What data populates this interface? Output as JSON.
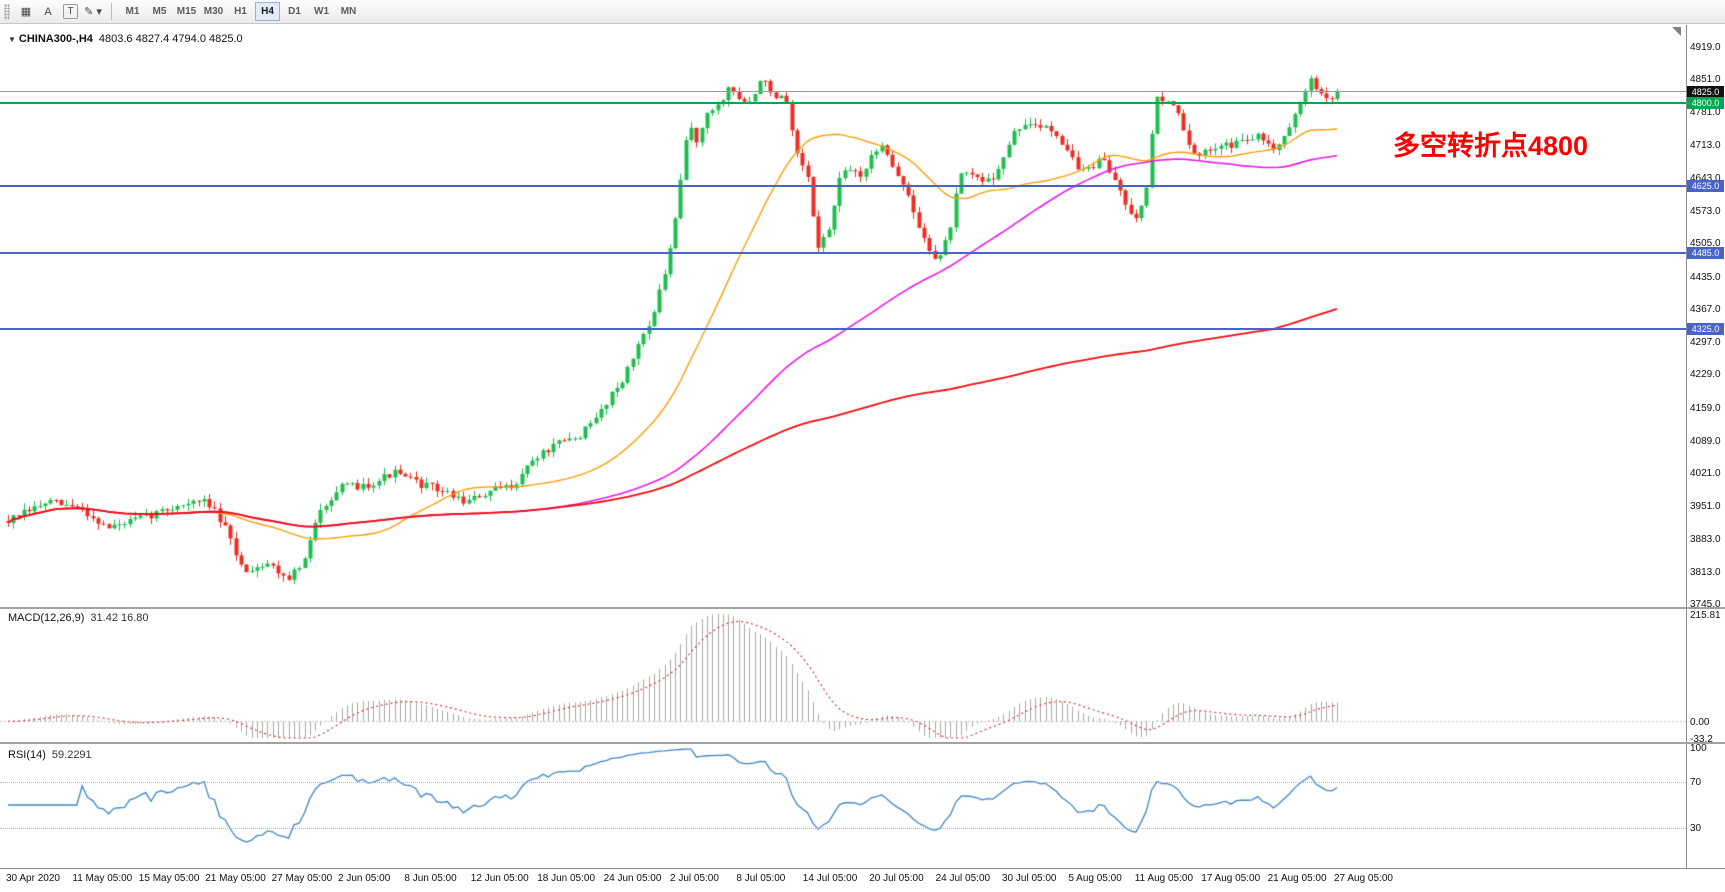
{
  "toolbar": {
    "tools": [
      {
        "name": "chart-grid-icon",
        "glyph": "▦"
      },
      {
        "name": "cursor-icon",
        "glyph": "A"
      },
      {
        "name": "text-tool-icon",
        "glyph": "T",
        "boxed": true
      },
      {
        "name": "drawing-tools-icon",
        "glyph": "✎ ▾"
      }
    ],
    "timeframes": [
      "M1",
      "M5",
      "M15",
      "M30",
      "H1",
      "H4",
      "D1",
      "W1",
      "MN"
    ],
    "active_timeframe": "H4"
  },
  "chart": {
    "symbol_label": "CHINA300-,H4",
    "ohlc": "4803.6 4827.4 4794.0 4825.0",
    "annotation": {
      "text": "多空转折点4800",
      "color": "#ff0000"
    },
    "price_axis": {
      "labels": [
        "4919.0",
        "4851.0",
        "4781.0",
        "4713.0",
        "4643.0",
        "4573.0",
        "4505.0",
        "4435.0",
        "4367.0",
        "4297.0",
        "4229.0",
        "4159.0",
        "4089.0",
        "4021.0",
        "3951.0",
        "3883.0",
        "3813.0",
        "3745.0"
      ]
    },
    "hlines": [
      {
        "price": 4825.0,
        "label": "4825.0",
        "color": "#9a9a9a",
        "width": 1,
        "badge_bg": "#111111",
        "badge_fg": "#ffffff"
      },
      {
        "price": 4800.0,
        "label": "4800.0",
        "color": "#00a651",
        "width": 2,
        "badge_bg": "#00a651",
        "badge_fg": "#ffffff"
      },
      {
        "price": 4625.0,
        "label": "4625.0",
        "color": "#4a63c8",
        "width": 2,
        "badge_bg": "#4a63c8",
        "badge_fg": "#ffffff"
      },
      {
        "price": 4485.0,
        "label": "4485.0",
        "color": "#4a63c8",
        "width": 2,
        "badge_bg": "#4a63c8",
        "badge_fg": "#ffffff"
      },
      {
        "price": 4325.0,
        "label": "4325.0",
        "color": "#4a63c8",
        "width": 2,
        "badge_bg": "#4a63c8",
        "badge_fg": "#ffffff"
      }
    ],
    "candles": {
      "seed": 7,
      "noise": 16,
      "wick": 14,
      "up_color": "#1dbf4f",
      "down_color": "#ed2e24"
    },
    "ma_lines": [
      {
        "period": 30,
        "color": "#ff9d0a",
        "width": 1.4
      },
      {
        "period": 90,
        "color": "#ec18e8",
        "width": 1.6
      },
      {
        "period": 240,
        "color": "#f20c0c",
        "width": 1.8
      }
    ]
  },
  "macd": {
    "label": "MACD(12,26,9)",
    "values": "31.42 16.80",
    "fast": 12,
    "slow": 26,
    "signal": 9,
    "axis": {
      "top": "215.81",
      "zero": "0.00",
      "bottom": "-33.2"
    },
    "hist_color": "#a8a8a8",
    "signal_color": "#d23b3b"
  },
  "rsi": {
    "label": "RSI(14)",
    "value": "59.2291",
    "period": 14,
    "axis_top": "100",
    "levels": [
      {
        "value": 70,
        "label": "70"
      },
      {
        "value": 30,
        "label": "30"
      }
    ],
    "line_color": "#3f86c6"
  },
  "time_axis": {
    "labels": [
      "30 Apr 2020",
      "11 May 05:00",
      "15 May 05:00",
      "21 May 05:00",
      "27 May 05:00",
      "2 Jun 05:00",
      "8 Jun 05:00",
      "12 Jun 05:00",
      "18 Jun 05:00",
      "24 Jun 05:00",
      "2 Jul 05:00",
      "8 Jul 05:00",
      "14 Jul 05:00",
      "20 Jul 05:00",
      "24 Jul 05:00",
      "30 Jul 05:00",
      "5 Aug 05:00",
      "11 Aug 05:00",
      "17 Aug 05:00",
      "21 Aug 05:00",
      "27 Aug 05:00"
    ]
  },
  "chart_data": {
    "type": "candlestick",
    "symbol": "CHINA300-",
    "timeframe": "H4",
    "ohlc_current": {
      "open": 4803.6,
      "high": 4827.4,
      "low": 4794.0,
      "close": 4825.0
    },
    "y_range": [
      3745.0,
      4919.0
    ],
    "x_range": [
      "30 Apr 2020",
      "27 Aug 2020"
    ],
    "candle_count": 252,
    "horizontal_levels": [
      4825.0,
      4800.0,
      4625.0,
      4485.0,
      4325.0
    ],
    "price_path": [
      [
        0,
        3920
      ],
      [
        0.03,
        3960
      ],
      [
        0.055,
        3945
      ],
      [
        0.075,
        3905
      ],
      [
        0.105,
        3930
      ],
      [
        0.13,
        3955
      ],
      [
        0.15,
        3962
      ],
      [
        0.163,
        3905
      ],
      [
        0.177,
        3815
      ],
      [
        0.195,
        3832
      ],
      [
        0.21,
        3800
      ],
      [
        0.222,
        3828
      ],
      [
        0.235,
        3948
      ],
      [
        0.25,
        3990
      ],
      [
        0.27,
        3996
      ],
      [
        0.29,
        4022
      ],
      [
        0.308,
        4000
      ],
      [
        0.325,
        3985
      ],
      [
        0.345,
        3960
      ],
      [
        0.362,
        3980
      ],
      [
        0.38,
        3996
      ],
      [
        0.395,
        4050
      ],
      [
        0.412,
        4080
      ],
      [
        0.428,
        4096
      ],
      [
        0.44,
        4126
      ],
      [
        0.452,
        4180
      ],
      [
        0.465,
        4230
      ],
      [
        0.477,
        4310
      ],
      [
        0.486,
        4360
      ],
      [
        0.494,
        4440
      ],
      [
        0.502,
        4550
      ],
      [
        0.508,
        4680
      ],
      [
        0.512,
        4762
      ],
      [
        0.518,
        4722
      ],
      [
        0.527,
        4780
      ],
      [
        0.535,
        4800
      ],
      [
        0.543,
        4836
      ],
      [
        0.551,
        4806
      ],
      [
        0.56,
        4800
      ],
      [
        0.568,
        4868
      ],
      [
        0.576,
        4800
      ],
      [
        0.584,
        4820
      ],
      [
        0.592,
        4700
      ],
      [
        0.601,
        4648
      ],
      [
        0.609,
        4500
      ],
      [
        0.617,
        4526
      ],
      [
        0.626,
        4645
      ],
      [
        0.634,
        4660
      ],
      [
        0.642,
        4650
      ],
      [
        0.65,
        4686
      ],
      [
        0.658,
        4720
      ],
      [
        0.667,
        4660
      ],
      [
        0.675,
        4620
      ],
      [
        0.683,
        4556
      ],
      [
        0.691,
        4500
      ],
      [
        0.7,
        4470
      ],
      [
        0.708,
        4526
      ],
      [
        0.716,
        4645
      ],
      [
        0.724,
        4650
      ],
      [
        0.732,
        4636
      ],
      [
        0.741,
        4646
      ],
      [
        0.749,
        4686
      ],
      [
        0.757,
        4736
      ],
      [
        0.765,
        4760
      ],
      [
        0.774,
        4746
      ],
      [
        0.782,
        4756
      ],
      [
        0.79,
        4730
      ],
      [
        0.798,
        4700
      ],
      [
        0.806,
        4656
      ],
      [
        0.815,
        4666
      ],
      [
        0.823,
        4680
      ],
      [
        0.831,
        4650
      ],
      [
        0.839,
        4600
      ],
      [
        0.848,
        4560
      ],
      [
        0.856,
        4612
      ],
      [
        0.864,
        4820
      ],
      [
        0.872,
        4800
      ],
      [
        0.88,
        4790
      ],
      [
        0.889,
        4700
      ],
      [
        0.897,
        4686
      ],
      [
        0.905,
        4706
      ],
      [
        0.913,
        4720
      ],
      [
        0.921,
        4712
      ],
      [
        0.93,
        4722
      ],
      [
        0.938,
        4732
      ],
      [
        0.946,
        4720
      ],
      [
        0.954,
        4706
      ],
      [
        0.962,
        4746
      ],
      [
        0.971,
        4786
      ],
      [
        0.979,
        4856
      ],
      [
        0.987,
        4820
      ],
      [
        0.994,
        4806
      ],
      [
        1,
        4825
      ]
    ],
    "moving_averages": [
      {
        "period": 30
      },
      {
        "period": 90
      },
      {
        "period": 240
      }
    ],
    "indicators": [
      {
        "name": "MACD",
        "params": [
          12,
          26,
          9
        ],
        "current": [
          31.42,
          16.8
        ],
        "axis": [
          215.81,
          0.0,
          -33.2
        ]
      },
      {
        "name": "RSI",
        "params": [
          14
        ],
        "current": 59.2291,
        "levels": [
          70,
          30
        ]
      }
    ]
  }
}
